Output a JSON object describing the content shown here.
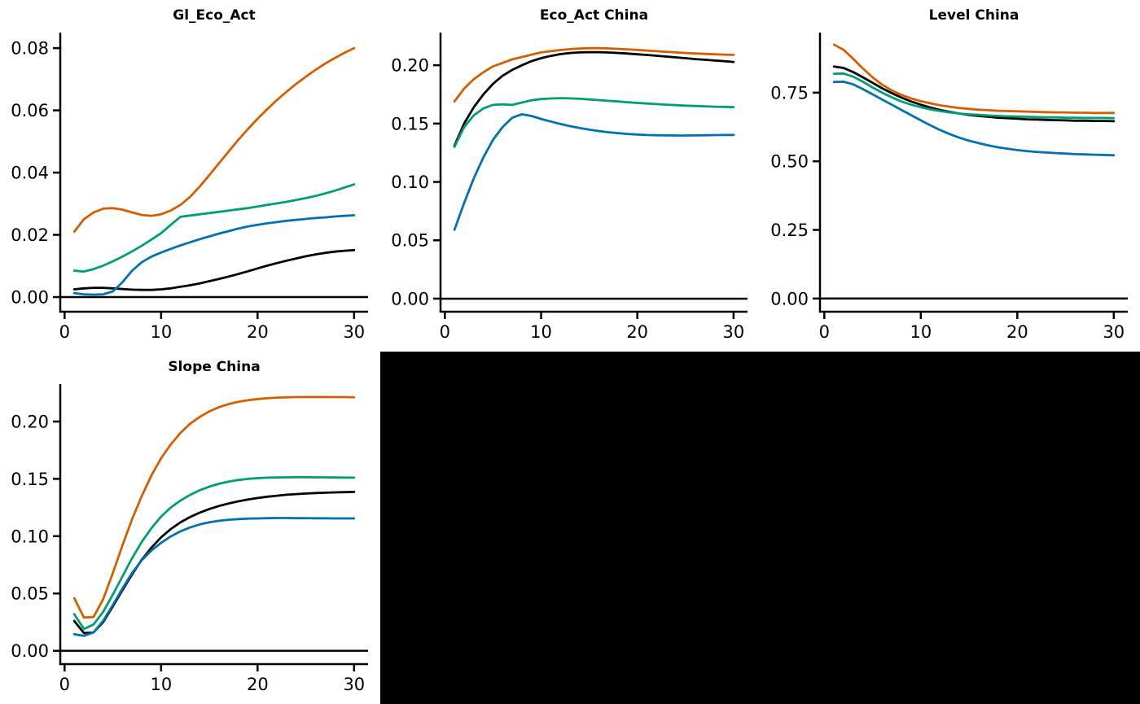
{
  "figure": {
    "background": "#ffffff",
    "empty_panel_color": "#000000"
  },
  "palette": {
    "black": "#000000",
    "blue": "#0072b2",
    "green": "#009e73",
    "orange": "#d55e00"
  },
  "chart_data": [
    {
      "type": "line",
      "title": "Gl_Eco_Act",
      "xlabel": "",
      "ylabel": "",
      "grid": false,
      "legend": "none",
      "zero_line": true,
      "xlim": [
        -0.45,
        31.45
      ],
      "ylim": [
        -0.0047,
        0.085
      ],
      "x_ticks": [
        0,
        10,
        20,
        30
      ],
      "x_tick_labels": [
        "0",
        "10",
        "20",
        "30"
      ],
      "y_ticks": [
        0,
        0.02,
        0.04,
        0.06,
        0.08
      ],
      "y_tick_labels": [
        "0.00",
        "0.02",
        "0.04",
        "0.06",
        "0.08"
      ],
      "x": [
        1,
        2,
        3,
        4,
        5,
        6,
        7,
        8,
        9,
        10,
        11,
        12,
        13,
        14,
        15,
        16,
        17,
        18,
        19,
        20,
        21,
        22,
        23,
        24,
        25,
        26,
        27,
        28,
        29,
        30
      ],
      "series": [
        {
          "name": "black",
          "color": "#000000",
          "values": [
            0.0025,
            0.0028,
            0.003,
            0.003,
            0.0028,
            0.0026,
            0.0024,
            0.0023,
            0.0023,
            0.0025,
            0.0028,
            0.0033,
            0.0038,
            0.0044,
            0.0051,
            0.0058,
            0.0066,
            0.0074,
            0.0083,
            0.0092,
            0.0101,
            0.0109,
            0.0117,
            0.0124,
            0.0131,
            0.0137,
            0.0142,
            0.0146,
            0.0149,
            0.0151
          ]
        },
        {
          "name": "blue",
          "color": "#0072b2",
          "values": [
            0.0013,
            0.0009,
            0.0008,
            0.0009,
            0.0018,
            0.0048,
            0.0085,
            0.0112,
            0.013,
            0.0143,
            0.0155,
            0.0166,
            0.0176,
            0.0186,
            0.0195,
            0.0204,
            0.0212,
            0.022,
            0.0227,
            0.0232,
            0.0237,
            0.0241,
            0.0245,
            0.0248,
            0.0251,
            0.0254,
            0.0256,
            0.0259,
            0.0261,
            0.0263
          ]
        },
        {
          "name": "green",
          "color": "#009e73",
          "values": [
            0.0085,
            0.0082,
            0.009,
            0.0101,
            0.0115,
            0.013,
            0.0147,
            0.0165,
            0.0185,
            0.0205,
            0.0232,
            0.0258,
            0.0262,
            0.0266,
            0.027,
            0.0274,
            0.0278,
            0.0282,
            0.0286,
            0.0291,
            0.0296,
            0.0301,
            0.0306,
            0.0312,
            0.0318,
            0.0325,
            0.0333,
            0.0342,
            0.0352,
            0.0362
          ]
        },
        {
          "name": "orange",
          "color": "#d55e00",
          "values": [
            0.021,
            0.025,
            0.0272,
            0.0284,
            0.0286,
            0.0281,
            0.0272,
            0.0264,
            0.0261,
            0.0266,
            0.0278,
            0.0296,
            0.0322,
            0.0355,
            0.0392,
            0.043,
            0.0468,
            0.0505,
            0.054,
            0.0573,
            0.0604,
            0.0633,
            0.066,
            0.0685,
            0.0708,
            0.073,
            0.075,
            0.0768,
            0.0785,
            0.08
          ]
        }
      ]
    },
    {
      "type": "line",
      "title": "Eco_Act China",
      "xlabel": "",
      "ylabel": "",
      "grid": false,
      "legend": "none",
      "zero_line": true,
      "xlim": [
        -0.45,
        31.45
      ],
      "ylim": [
        -0.0112,
        0.228
      ],
      "x_ticks": [
        0,
        10,
        20,
        30
      ],
      "x_tick_labels": [
        "0",
        "10",
        "20",
        "30"
      ],
      "y_ticks": [
        0,
        0.05,
        0.1,
        0.15,
        0.2
      ],
      "y_tick_labels": [
        "0.00",
        "0.05",
        "0.10",
        "0.15",
        "0.20"
      ],
      "x": [
        1,
        2,
        3,
        4,
        5,
        6,
        7,
        8,
        9,
        10,
        11,
        12,
        13,
        14,
        15,
        16,
        17,
        18,
        19,
        20,
        21,
        22,
        23,
        24,
        25,
        26,
        27,
        28,
        29,
        30
      ],
      "series": [
        {
          "name": "black",
          "color": "#000000",
          "values": [
            0.131,
            0.15,
            0.164,
            0.175,
            0.184,
            0.191,
            0.196,
            0.2,
            0.2035,
            0.206,
            0.208,
            0.2095,
            0.2105,
            0.211,
            0.2112,
            0.2112,
            0.2109,
            0.2105,
            0.21,
            0.2094,
            0.2088,
            0.2081,
            0.2074,
            0.2067,
            0.206,
            0.2053,
            0.2047,
            0.2041,
            0.2035,
            0.2028
          ]
        },
        {
          "name": "blue",
          "color": "#0072b2",
          "values": [
            0.059,
            0.082,
            0.103,
            0.121,
            0.136,
            0.147,
            0.155,
            0.158,
            0.1565,
            0.154,
            0.1518,
            0.1497,
            0.1478,
            0.1462,
            0.1448,
            0.1436,
            0.1426,
            0.1418,
            0.1411,
            0.1406,
            0.1402,
            0.14,
            0.1399,
            0.1398,
            0.1398,
            0.1399,
            0.14,
            0.1401,
            0.1402,
            0.1403
          ]
        },
        {
          "name": "green",
          "color": "#009e73",
          "values": [
            0.13,
            0.147,
            0.157,
            0.163,
            0.166,
            0.1665,
            0.166,
            0.168,
            0.17,
            0.171,
            0.1715,
            0.1718,
            0.1716,
            0.1712,
            0.1707,
            0.1701,
            0.1695,
            0.1689,
            0.1683,
            0.1677,
            0.1672,
            0.1667,
            0.1662,
            0.1658,
            0.1654,
            0.1651,
            0.1648,
            0.1645,
            0.1643,
            0.1641
          ]
        },
        {
          "name": "orange",
          "color": "#d55e00",
          "values": [
            0.169,
            0.18,
            0.188,
            0.194,
            0.199,
            0.202,
            0.205,
            0.207,
            0.209,
            0.211,
            0.212,
            0.213,
            0.2138,
            0.2143,
            0.2146,
            0.2146,
            0.2144,
            0.214,
            0.2136,
            0.2131,
            0.2126,
            0.212,
            0.2115,
            0.211,
            0.2105,
            0.2101,
            0.2097,
            0.2094,
            0.2091,
            0.2089
          ]
        }
      ]
    },
    {
      "type": "line",
      "title": "Level China",
      "xlabel": "",
      "ylabel": "",
      "grid": false,
      "legend": "none",
      "zero_line": true,
      "xlim": [
        -0.45,
        31.45
      ],
      "ylim": [
        -0.048,
        0.969
      ],
      "x_ticks": [
        0,
        10,
        20,
        30
      ],
      "x_tick_labels": [
        "0",
        "10",
        "20",
        "30"
      ],
      "y_ticks": [
        0,
        0.25,
        0.5,
        0.75
      ],
      "y_tick_labels": [
        "0.00",
        "0.25",
        "0.50",
        "0.75"
      ],
      "x": [
        1,
        2,
        3,
        4,
        5,
        6,
        7,
        8,
        9,
        10,
        11,
        12,
        13,
        14,
        15,
        16,
        17,
        18,
        19,
        20,
        21,
        22,
        23,
        24,
        25,
        26,
        27,
        28,
        29,
        30
      ],
      "series": [
        {
          "name": "black",
          "color": "#000000",
          "values": [
            0.845,
            0.84,
            0.825,
            0.806,
            0.786,
            0.766,
            0.748,
            0.732,
            0.718,
            0.706,
            0.696,
            0.687,
            0.68,
            0.674,
            0.669,
            0.665,
            0.662,
            0.659,
            0.657,
            0.655,
            0.653,
            0.652,
            0.651,
            0.65,
            0.649,
            0.648,
            0.648,
            0.647,
            0.647,
            0.646
          ]
        },
        {
          "name": "blue",
          "color": "#0072b2",
          "values": [
            0.789,
            0.79,
            0.78,
            0.763,
            0.744,
            0.725,
            0.706,
            0.687,
            0.668,
            0.649,
            0.631,
            0.614,
            0.599,
            0.586,
            0.575,
            0.566,
            0.558,
            0.551,
            0.546,
            0.541,
            0.537,
            0.534,
            0.532,
            0.53,
            0.528,
            0.526,
            0.525,
            0.524,
            0.523,
            0.522
          ]
        },
        {
          "name": "green",
          "color": "#009e73",
          "values": [
            0.819,
            0.82,
            0.808,
            0.79,
            0.769,
            0.75,
            0.733,
            0.718,
            0.706,
            0.697,
            0.689,
            0.683,
            0.678,
            0.674,
            0.671,
            0.669,
            0.667,
            0.665,
            0.664,
            0.663,
            0.662,
            0.661,
            0.66,
            0.66,
            0.659,
            0.659,
            0.658,
            0.658,
            0.658,
            0.657
          ]
        },
        {
          "name": "orange",
          "color": "#d55e00",
          "values": [
            0.925,
            0.906,
            0.873,
            0.838,
            0.806,
            0.779,
            0.758,
            0.742,
            0.729,
            0.719,
            0.711,
            0.704,
            0.699,
            0.694,
            0.691,
            0.688,
            0.686,
            0.684,
            0.683,
            0.682,
            0.681,
            0.68,
            0.679,
            0.678,
            0.678,
            0.677,
            0.677,
            0.676,
            0.676,
            0.676
          ]
        }
      ]
    },
    {
      "type": "line",
      "title": "Slope China",
      "xlabel": "",
      "ylabel": "",
      "grid": false,
      "legend": "none",
      "zero_line": true,
      "xlim": [
        -0.45,
        31.45
      ],
      "ylim": [
        -0.0116,
        0.2326
      ],
      "x_ticks": [
        0,
        10,
        20,
        30
      ],
      "x_tick_labels": [
        "0",
        "10",
        "20",
        "30"
      ],
      "y_ticks": [
        0,
        0.05,
        0.1,
        0.15,
        0.2
      ],
      "y_tick_labels": [
        "0.00",
        "0.05",
        "0.10",
        "0.15",
        "0.20"
      ],
      "x": [
        1,
        2,
        3,
        4,
        5,
        6,
        7,
        8,
        9,
        10,
        11,
        12,
        13,
        14,
        15,
        16,
        17,
        18,
        19,
        20,
        21,
        22,
        23,
        24,
        25,
        26,
        27,
        28,
        29,
        30
      ],
      "series": [
        {
          "name": "black",
          "color": "#000000",
          "values": [
            0.026,
            0.0155,
            0.016,
            0.025,
            0.0388,
            0.053,
            0.0668,
            0.0795,
            0.09,
            0.099,
            0.1062,
            0.112,
            0.1167,
            0.1205,
            0.1237,
            0.1263,
            0.1285,
            0.1304,
            0.132,
            0.1333,
            0.1344,
            0.1353,
            0.1361,
            0.1367,
            0.1372,
            0.1376,
            0.1379,
            0.1382,
            0.1384,
            0.1386
          ]
        },
        {
          "name": "blue",
          "color": "#0072b2",
          "values": [
            0.0145,
            0.013,
            0.016,
            0.0262,
            0.04,
            0.0545,
            0.068,
            0.079,
            0.0875,
            0.0942,
            0.0998,
            0.1042,
            0.1076,
            0.1102,
            0.1121,
            0.1134,
            0.1143,
            0.1149,
            0.1153,
            0.1155,
            0.1157,
            0.1158,
            0.1158,
            0.1157,
            0.1157,
            0.1156,
            0.1156,
            0.1155,
            0.1155,
            0.1155
          ]
        },
        {
          "name": "green",
          "color": "#009e73",
          "values": [
            0.032,
            0.019,
            0.023,
            0.034,
            0.049,
            0.065,
            0.081,
            0.095,
            0.107,
            0.117,
            0.125,
            0.131,
            0.136,
            0.14,
            0.1432,
            0.1457,
            0.1476,
            0.149,
            0.15,
            0.1506,
            0.151,
            0.1512,
            0.1513,
            0.1514,
            0.1514,
            0.1513,
            0.1513,
            0.1512,
            0.1511,
            0.151
          ]
        },
        {
          "name": "orange",
          "color": "#d55e00",
          "values": [
            0.046,
            0.029,
            0.0295,
            0.045,
            0.068,
            0.092,
            0.115,
            0.135,
            0.153,
            0.168,
            0.18,
            0.19,
            0.198,
            0.204,
            0.2088,
            0.2125,
            0.2152,
            0.2172,
            0.2186,
            0.2196,
            0.2203,
            0.2208,
            0.2211,
            0.2213,
            0.2214,
            0.2214,
            0.2214,
            0.2213,
            0.2213,
            0.2212
          ]
        }
      ]
    }
  ]
}
